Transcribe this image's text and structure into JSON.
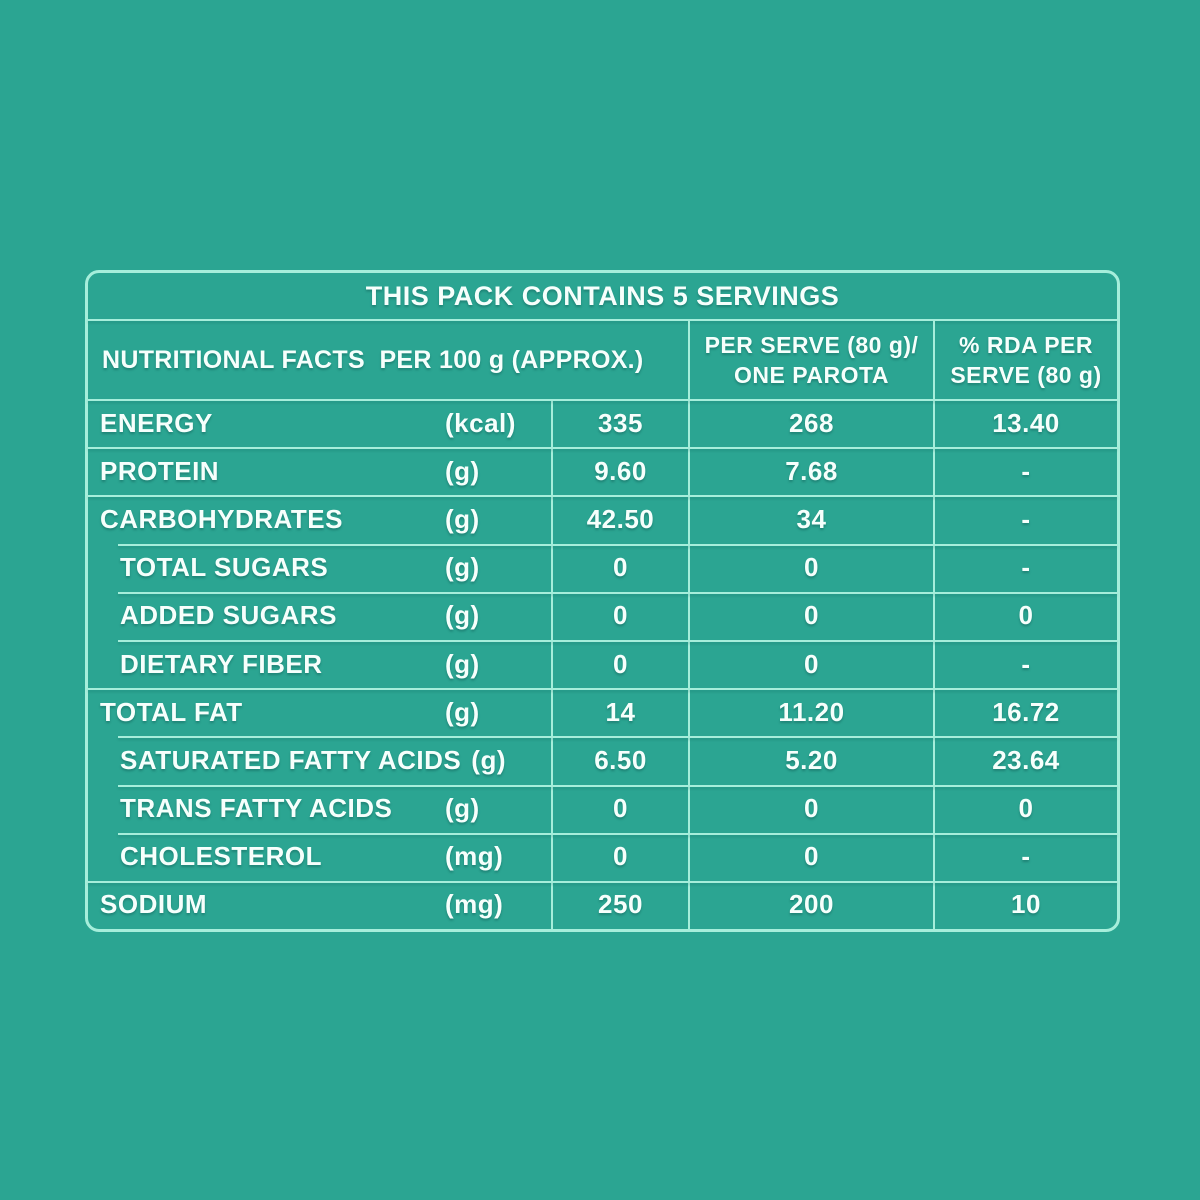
{
  "colors": {
    "background": "#2BA592",
    "grid_line": "#A6EEDB",
    "text": "#F6FFFC"
  },
  "table": {
    "title": "THIS PACK CONTAINS 5 SERVINGS",
    "header": {
      "nutritional_facts": "NUTRITIONAL FACTS  PER 100 g (APPROX.)",
      "per_serve_line1": "PER SERVE (80 g)/",
      "per_serve_line2": "ONE PAROTA",
      "rda_line1": "% RDA PER",
      "rda_line2": "SERVE (80 g)"
    },
    "rows": [
      {
        "label": "ENERGY",
        "unit": "(kcal)",
        "per_100g": "335",
        "per_serve": "268",
        "rda_percent": "13.40",
        "indent": false,
        "unit_inline": false
      },
      {
        "label": "PROTEIN",
        "unit": "(g)",
        "per_100g": "9.60",
        "per_serve": "7.68",
        "rda_percent": "-",
        "indent": false,
        "unit_inline": false
      },
      {
        "label": "CARBOHYDRATES",
        "unit": "(g)",
        "per_100g": "42.50",
        "per_serve": "34",
        "rda_percent": "-",
        "indent": false,
        "unit_inline": false
      },
      {
        "label": "TOTAL SUGARS",
        "unit": "(g)",
        "per_100g": "0",
        "per_serve": "0",
        "rda_percent": "-",
        "indent": true,
        "unit_inline": false
      },
      {
        "label": "ADDED SUGARS",
        "unit": "(g)",
        "per_100g": "0",
        "per_serve": "0",
        "rda_percent": "0",
        "indent": true,
        "unit_inline": false
      },
      {
        "label": "DIETARY FIBER",
        "unit": "(g)",
        "per_100g": "0",
        "per_serve": "0",
        "rda_percent": "-",
        "indent": true,
        "unit_inline": false
      },
      {
        "label": "TOTAL FAT",
        "unit": "(g)",
        "per_100g": "14",
        "per_serve": "11.20",
        "rda_percent": "16.72",
        "indent": false,
        "unit_inline": false
      },
      {
        "label": "SATURATED FATTY ACIDS",
        "unit": "(g)",
        "per_100g": "6.50",
        "per_serve": "5.20",
        "rda_percent": "23.64",
        "indent": true,
        "unit_inline": true
      },
      {
        "label": "TRANS FATTY ACIDS",
        "unit": "(g)",
        "per_100g": "0",
        "per_serve": "0",
        "rda_percent": "0",
        "indent": true,
        "unit_inline": false
      },
      {
        "label": "CHOLESTEROL",
        "unit": "(mg)",
        "per_100g": "0",
        "per_serve": "0",
        "rda_percent": "-",
        "indent": true,
        "unit_inline": false
      },
      {
        "label": "SODIUM",
        "unit": "(mg)",
        "per_100g": "250",
        "per_serve": "200",
        "rda_percent": "10",
        "indent": false,
        "unit_inline": false
      }
    ]
  }
}
